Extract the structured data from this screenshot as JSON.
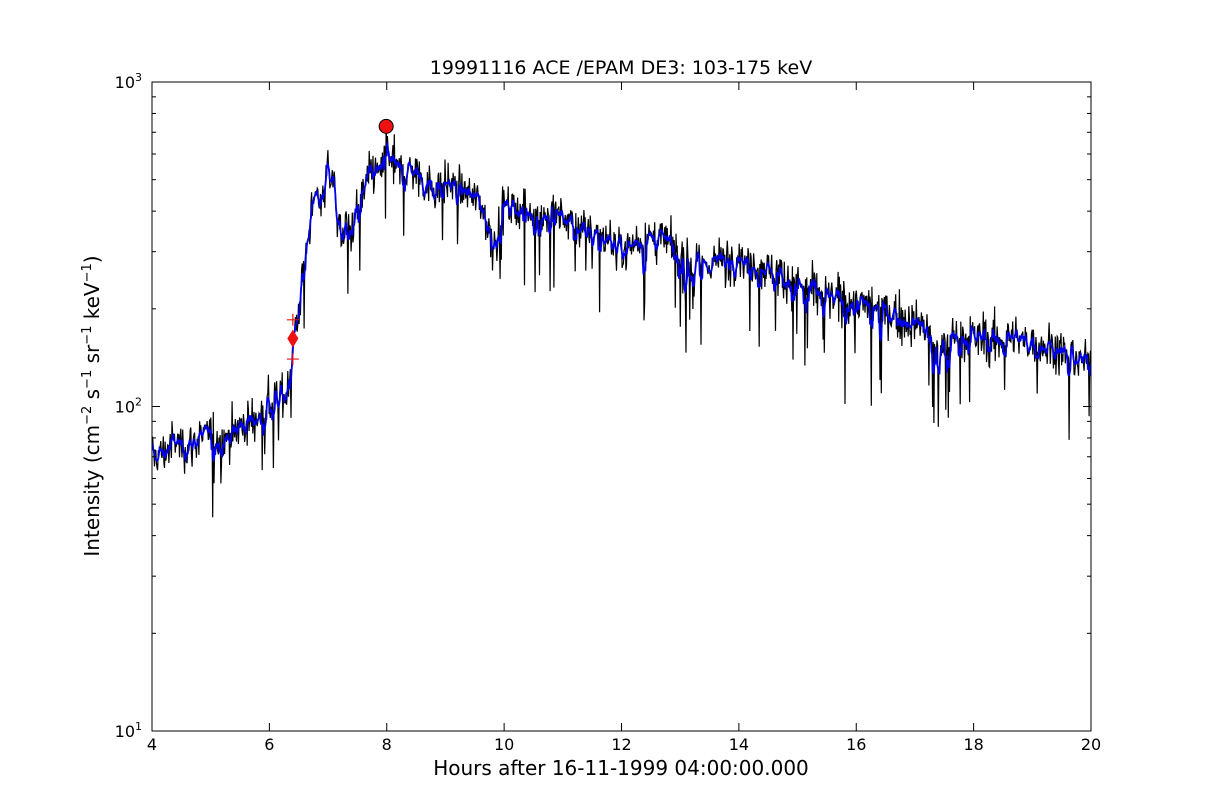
{
  "chart_data": {
    "type": "line",
    "title": "19991116 ACE /EPAM DE3: 103-175 keV",
    "xlabel": "Hours after 16-11-1999 04:00:00.000",
    "ylabel": {
      "prefix": "Intensity (cm",
      "exp1": "−2",
      "s_part": " s",
      "exp2": "−1",
      "sr_part": " sr",
      "exp3": "−1",
      "kev_part": " keV",
      "exp4": "−1",
      "suffix": ")"
    },
    "xlim": [
      4,
      20
    ],
    "ylim": [
      10,
      1000
    ],
    "yscale": "log",
    "grid": false,
    "x_ticks": [
      4,
      6,
      8,
      10,
      12,
      14,
      16,
      18,
      20
    ],
    "x_tick_labels": [
      "4",
      "6",
      "8",
      "10",
      "12",
      "14",
      "16",
      "18",
      "20"
    ],
    "y_major_ticks": [
      {
        "value": 10,
        "base": "10",
        "exp": "1"
      },
      {
        "value": 100,
        "base": "10",
        "exp": "2"
      },
      {
        "value": 1000,
        "base": "10",
        "exp": "3"
      }
    ],
    "series_profile": [
      [
        4.0,
        70
      ],
      [
        4.2,
        72
      ],
      [
        4.4,
        78
      ],
      [
        4.6,
        75
      ],
      [
        4.8,
        80
      ],
      [
        5.0,
        82
      ],
      [
        5.2,
        78
      ],
      [
        5.4,
        85
      ],
      [
        5.6,
        88
      ],
      [
        5.8,
        92
      ],
      [
        6.0,
        100
      ],
      [
        6.2,
        108
      ],
      [
        6.3,
        112
      ],
      [
        6.4,
        150
      ],
      [
        6.5,
        200
      ],
      [
        6.6,
        280
      ],
      [
        6.7,
        380
      ],
      [
        6.8,
        450
      ],
      [
        6.9,
        430
      ],
      [
        7.0,
        560
      ],
      [
        7.1,
        480
      ],
      [
        7.2,
        340
      ],
      [
        7.3,
        360
      ],
      [
        7.4,
        350
      ],
      [
        7.5,
        410
      ],
      [
        7.6,
        450
      ],
      [
        7.7,
        500
      ],
      [
        7.8,
        540
      ],
      [
        7.9,
        520
      ],
      [
        8.0,
        650
      ],
      [
        8.1,
        560
      ],
      [
        8.2,
        530
      ],
      [
        8.4,
        540
      ],
      [
        8.6,
        500
      ],
      [
        8.8,
        470
      ],
      [
        9.0,
        490
      ],
      [
        9.2,
        470
      ],
      [
        9.4,
        450
      ],
      [
        9.6,
        430
      ],
      [
        9.8,
        320
      ],
      [
        9.9,
        340
      ],
      [
        10.0,
        420
      ],
      [
        10.4,
        400
      ],
      [
        10.8,
        390
      ],
      [
        11.2,
        370
      ],
      [
        11.6,
        340
      ],
      [
        12.0,
        310
      ],
      [
        12.4,
        330
      ],
      [
        12.8,
        320
      ],
      [
        13.0,
        290
      ],
      [
        13.2,
        270
      ],
      [
        13.6,
        280
      ],
      [
        14.0,
        290
      ],
      [
        14.4,
        270
      ],
      [
        14.8,
        250
      ],
      [
        15.2,
        230
      ],
      [
        15.6,
        215
      ],
      [
        16.0,
        210
      ],
      [
        16.4,
        200
      ],
      [
        16.8,
        185
      ],
      [
        17.2,
        175
      ],
      [
        17.4,
        145
      ],
      [
        17.6,
        165
      ],
      [
        18.0,
        165
      ],
      [
        18.4,
        160
      ],
      [
        18.8,
        160
      ],
      [
        19.2,
        155
      ],
      [
        19.6,
        145
      ],
      [
        20.0,
        135
      ]
    ],
    "markers": [
      {
        "type": "circle",
        "x": 7.99,
        "y": 730,
        "color": "#ee1111"
      },
      {
        "type": "diamond",
        "x": 6.4,
        "y": 162,
        "color": "#ee1111"
      },
      {
        "type": "plus",
        "x": 6.4,
        "y": 185,
        "color": "#ee1111"
      },
      {
        "type": "plus",
        "x": 6.4,
        "y": 140,
        "color": "#ee1111"
      }
    ],
    "colors": {
      "raw": "#000000",
      "smoothed": "#0000ee",
      "markers": "#ee1111"
    }
  }
}
